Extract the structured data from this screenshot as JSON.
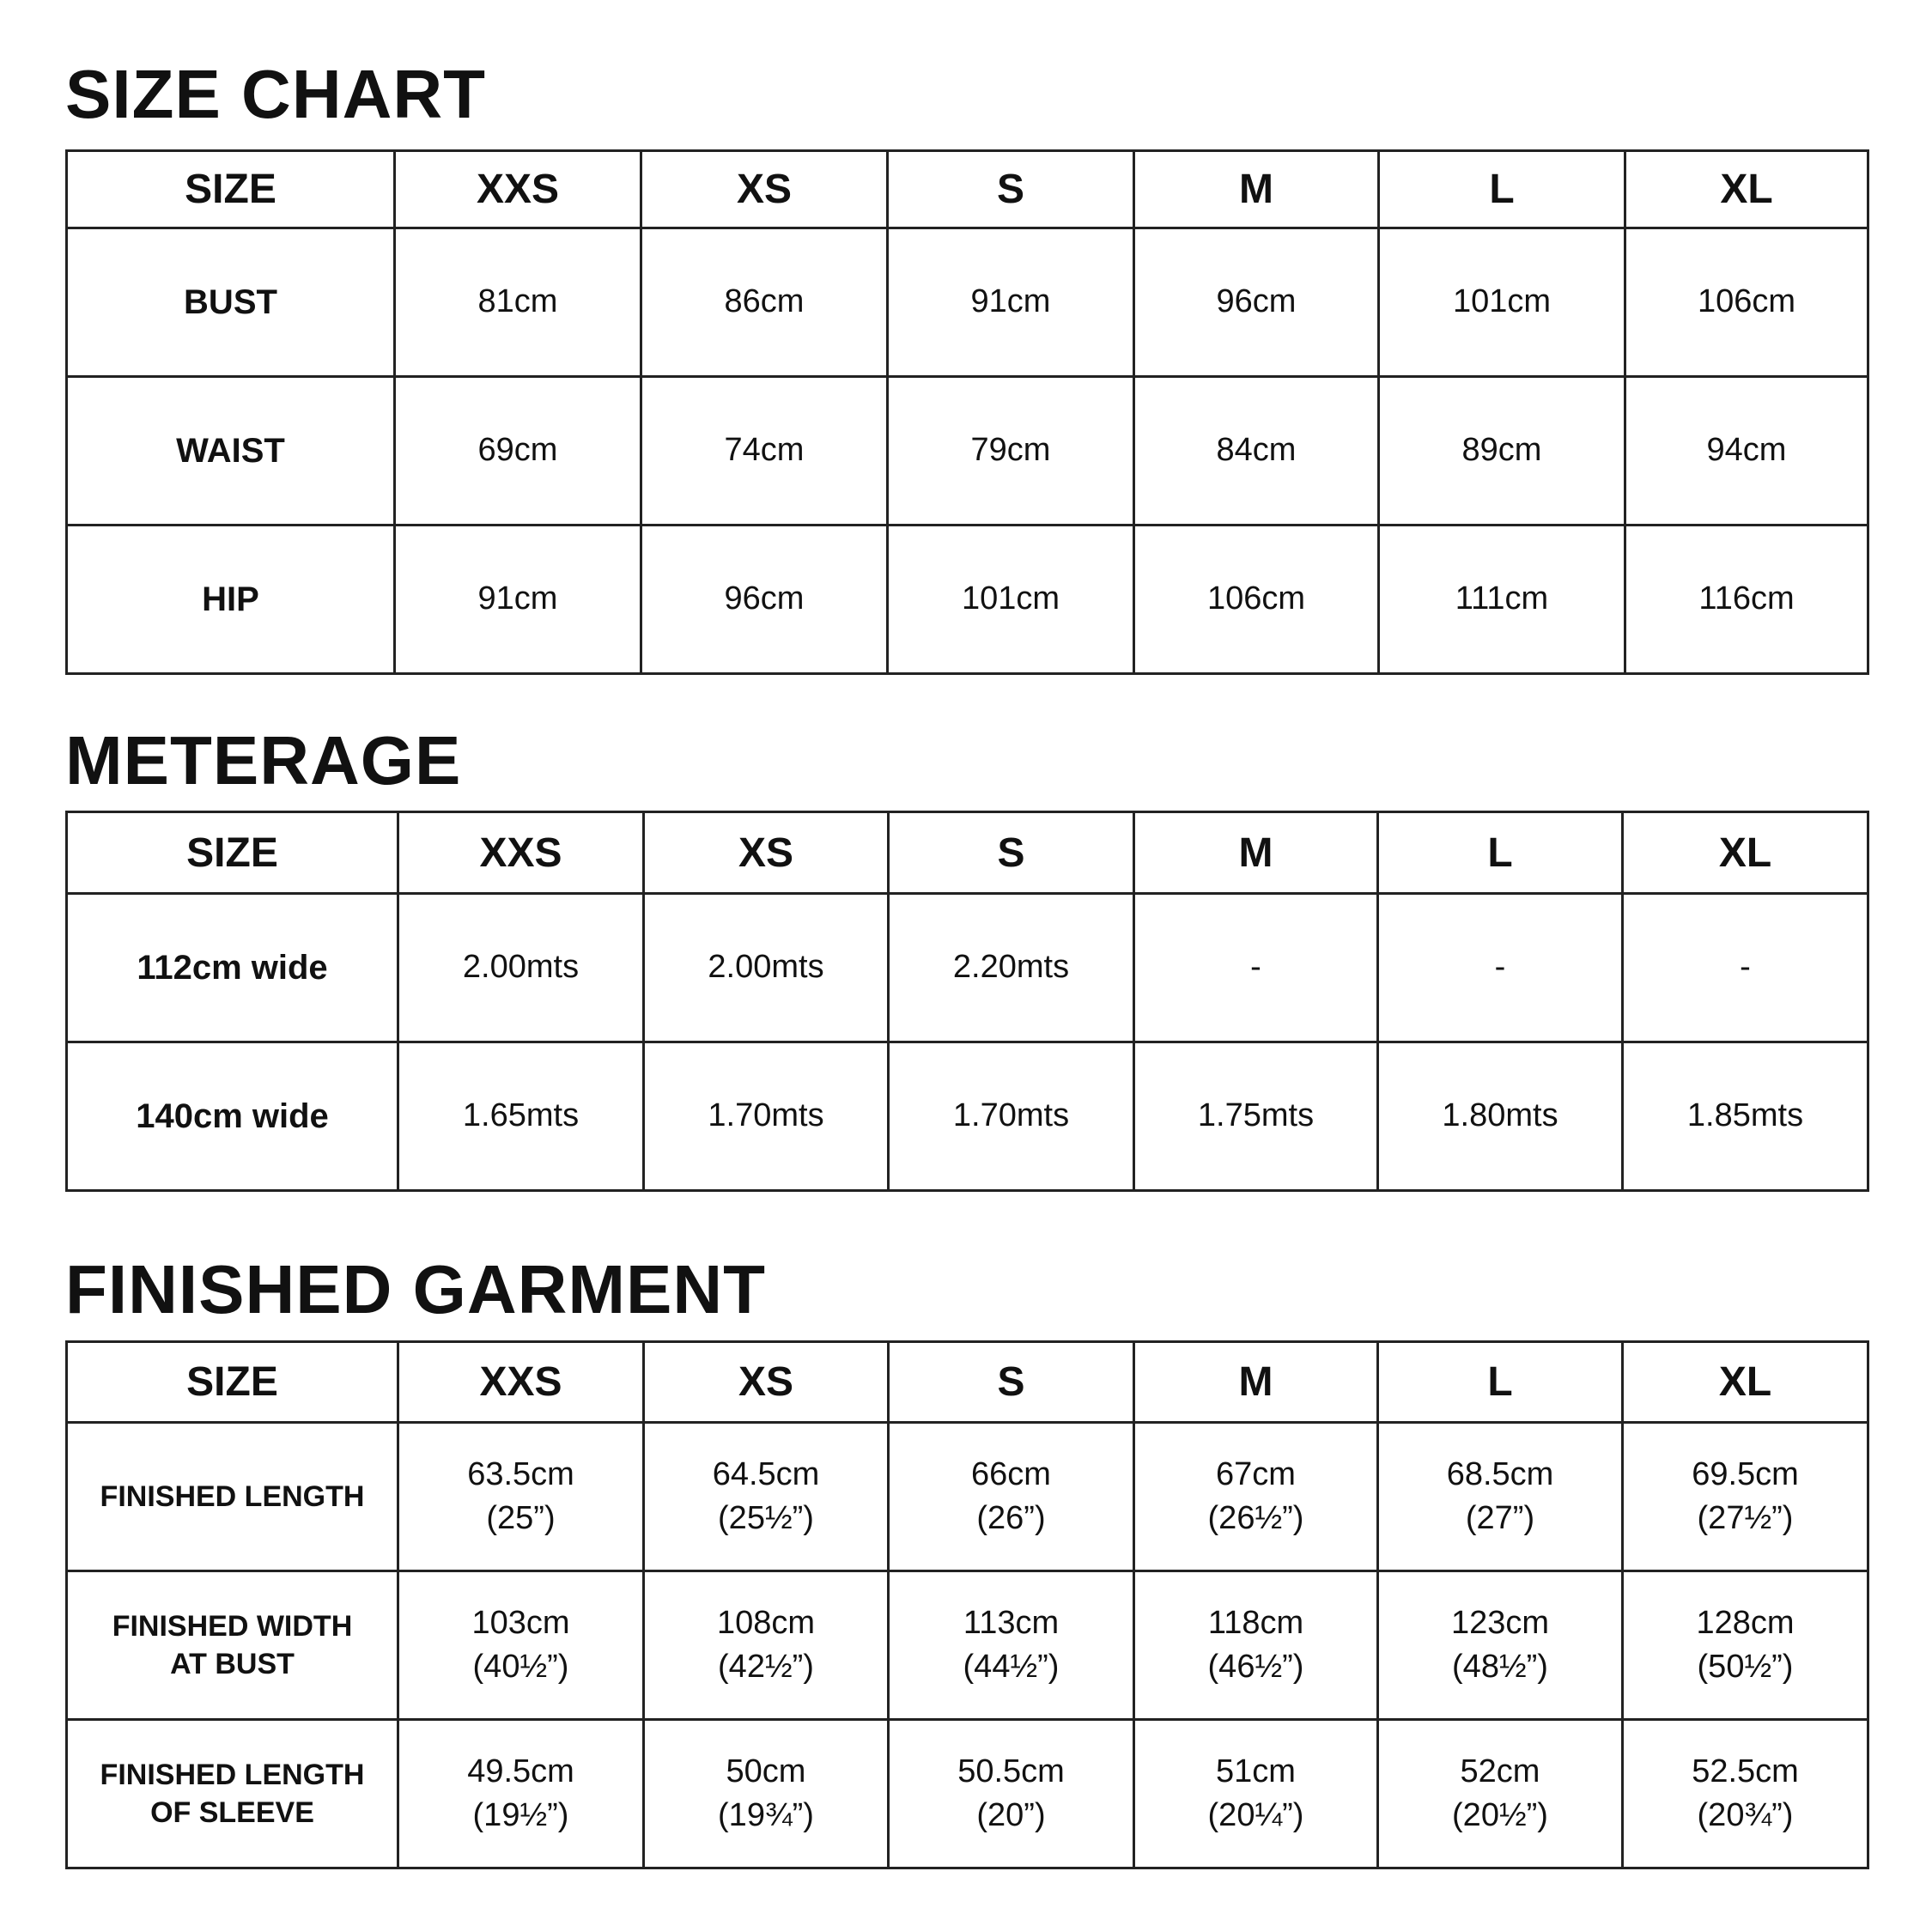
{
  "sections": [
    {
      "title": "SIZE CHART",
      "headers": [
        "SIZE",
        "XXS",
        "XS",
        "S",
        "M",
        "L",
        "XL"
      ],
      "rows": [
        {
          "label": [
            "BUST"
          ],
          "values": [
            [
              "81cm"
            ],
            [
              "86cm"
            ],
            [
              "91cm"
            ],
            [
              "96cm"
            ],
            [
              "101cm"
            ],
            [
              "106cm"
            ]
          ]
        },
        {
          "label": [
            "WAIST"
          ],
          "values": [
            [
              "69cm"
            ],
            [
              "74cm"
            ],
            [
              "79cm"
            ],
            [
              "84cm"
            ],
            [
              "89cm"
            ],
            [
              "94cm"
            ]
          ]
        },
        {
          "label": [
            "HIP"
          ],
          "values": [
            [
              "91cm"
            ],
            [
              "96cm"
            ],
            [
              "101cm"
            ],
            [
              "106cm"
            ],
            [
              "111cm"
            ],
            [
              "116cm"
            ]
          ]
        }
      ]
    },
    {
      "title": "METERAGE",
      "headers": [
        "SIZE",
        "XXS",
        "XS",
        "S",
        "M",
        "L",
        "XL"
      ],
      "rows": [
        {
          "label": [
            "112cm wide"
          ],
          "values": [
            [
              "2.00mts"
            ],
            [
              "2.00mts"
            ],
            [
              "2.20mts"
            ],
            [
              "-"
            ],
            [
              "-"
            ],
            [
              "-"
            ]
          ]
        },
        {
          "label": [
            "140cm wide"
          ],
          "values": [
            [
              "1.65mts"
            ],
            [
              "1.70mts"
            ],
            [
              "1.70mts"
            ],
            [
              "1.75mts"
            ],
            [
              "1.80mts"
            ],
            [
              "1.85mts"
            ]
          ]
        }
      ]
    },
    {
      "title": "FINISHED GARMENT",
      "headers": [
        "SIZE",
        "XXS",
        "XS",
        "S",
        "M",
        "L",
        "XL"
      ],
      "rows": [
        {
          "label": [
            "FINISHED LENGTH"
          ],
          "values": [
            [
              "63.5cm",
              "(25”)"
            ],
            [
              "64.5cm",
              "(25½”)"
            ],
            [
              "66cm",
              "(26”)"
            ],
            [
              "67cm",
              "(26½”)"
            ],
            [
              "68.5cm",
              "(27”)"
            ],
            [
              "69.5cm",
              "(27½”)"
            ]
          ]
        },
        {
          "label": [
            "FINISHED WIDTH",
            "AT BUST"
          ],
          "values": [
            [
              "103cm",
              "(40½”)"
            ],
            [
              "108cm",
              "(42½”)"
            ],
            [
              "113cm",
              "(44½”)"
            ],
            [
              "118cm",
              "(46½”)"
            ],
            [
              "123cm",
              "(48½”)"
            ],
            [
              "128cm",
              "(50½”)"
            ]
          ]
        },
        {
          "label": [
            "FINISHED LENGTH",
            "OF SLEEVE"
          ],
          "values": [
            [
              "49.5cm",
              "(19½”)"
            ],
            [
              "50cm",
              "(19¾”)"
            ],
            [
              "50.5cm",
              "(20”)"
            ],
            [
              "51cm",
              "(20¼”)"
            ],
            [
              "52cm",
              "(20½”)"
            ],
            [
              "52.5cm",
              "(20¾”)"
            ]
          ]
        }
      ]
    }
  ]
}
